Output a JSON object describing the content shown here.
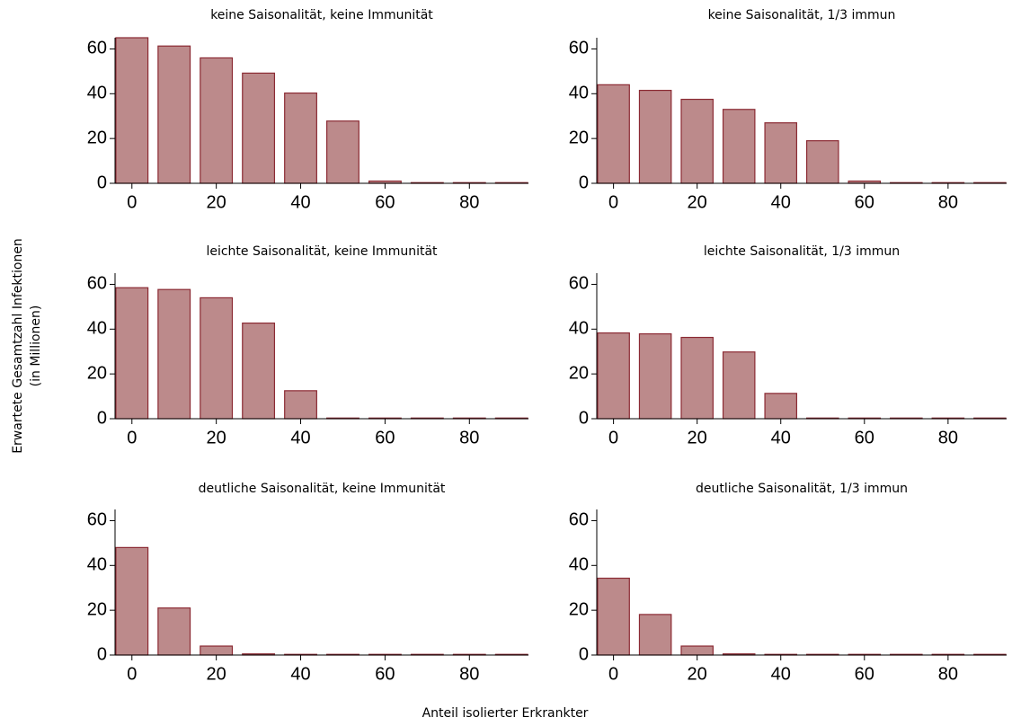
{
  "ylabel_lines": [
    "Erwartete Gesamtzahl Infektionen",
    "(in Millionen)"
  ],
  "xlabel": "Anteil isolierter Erkrankter",
  "chart_data": [
    {
      "type": "bar",
      "title": "keine Saisonalität, keine Immunität",
      "x": [
        0,
        10,
        20,
        30,
        40,
        50,
        60,
        70,
        80,
        90
      ],
      "values": [
        65,
        61.3,
        56,
        49.2,
        40.3,
        27.8,
        1,
        0.3,
        0.3,
        0.3
      ],
      "xlim": [
        -4,
        94
      ],
      "ylim": [
        0,
        65
      ],
      "xticks": [
        0,
        20,
        40,
        60,
        80
      ],
      "yticks": [
        0,
        20,
        40,
        60
      ],
      "color": "#bc8a8b",
      "edgecolor": "#8b2a33"
    },
    {
      "type": "bar",
      "title": "keine Saisonalität, 1/3 immun",
      "x": [
        0,
        10,
        20,
        30,
        40,
        50,
        60,
        70,
        80,
        90
      ],
      "values": [
        44,
        41.5,
        37.5,
        33,
        27,
        19,
        1,
        0.3,
        0.3,
        0.3
      ],
      "xlim": [
        -4,
        94
      ],
      "ylim": [
        0,
        65
      ],
      "xticks": [
        0,
        20,
        40,
        60,
        80
      ],
      "yticks": [
        0,
        20,
        40,
        60
      ],
      "color": "#bc8a8b",
      "edgecolor": "#8b2a33"
    },
    {
      "type": "bar",
      "title": "leichte Saisonalität, keine Immunität",
      "x": [
        0,
        10,
        20,
        30,
        40,
        50,
        60,
        70,
        80,
        90
      ],
      "values": [
        58.5,
        57.7,
        54,
        42.7,
        12.5,
        0.3,
        0.3,
        0.3,
        0.3,
        0.3
      ],
      "xlim": [
        -4,
        94
      ],
      "ylim": [
        0,
        65
      ],
      "xticks": [
        0,
        20,
        40,
        60,
        80
      ],
      "yticks": [
        0,
        20,
        40,
        60
      ],
      "color": "#bc8a8b",
      "edgecolor": "#8b2a33"
    },
    {
      "type": "bar",
      "title": "leichte Saisonalität, 1/3 immun",
      "x": [
        0,
        10,
        20,
        30,
        40,
        50,
        60,
        70,
        80,
        90
      ],
      "values": [
        38.3,
        37.9,
        36.3,
        29.8,
        11.3,
        0.3,
        0.3,
        0.3,
        0.3,
        0.3
      ],
      "xlim": [
        -4,
        94
      ],
      "ylim": [
        0,
        65
      ],
      "xticks": [
        0,
        20,
        40,
        60,
        80
      ],
      "yticks": [
        0,
        20,
        40,
        60
      ],
      "color": "#bc8a8b",
      "edgecolor": "#8b2a33"
    },
    {
      "type": "bar",
      "title": "deutliche Saisonalität, keine Immunität",
      "x": [
        0,
        10,
        20,
        30,
        40,
        50,
        60,
        70,
        80,
        90
      ],
      "values": [
        48,
        21,
        4,
        0.5,
        0.3,
        0.3,
        0.3,
        0.3,
        0.3,
        0.3
      ],
      "xlim": [
        -4,
        94
      ],
      "ylim": [
        0,
        65
      ],
      "xticks": [
        0,
        20,
        40,
        60,
        80
      ],
      "yticks": [
        0,
        20,
        40,
        60
      ],
      "color": "#bc8a8b",
      "edgecolor": "#8b2a33"
    },
    {
      "type": "bar",
      "title": "deutliche Saisonalität, 1/3 immun",
      "x": [
        0,
        10,
        20,
        30,
        40,
        50,
        60,
        70,
        80,
        90
      ],
      "values": [
        34.3,
        18.1,
        4,
        0.5,
        0.3,
        0.3,
        0.3,
        0.3,
        0.3,
        0.3
      ],
      "xlim": [
        -4,
        94
      ],
      "ylim": [
        0,
        65
      ],
      "xticks": [
        0,
        20,
        40,
        60,
        80
      ],
      "yticks": [
        0,
        20,
        40,
        60
      ],
      "color": "#bc8a8b",
      "edgecolor": "#8b2a33"
    }
  ]
}
